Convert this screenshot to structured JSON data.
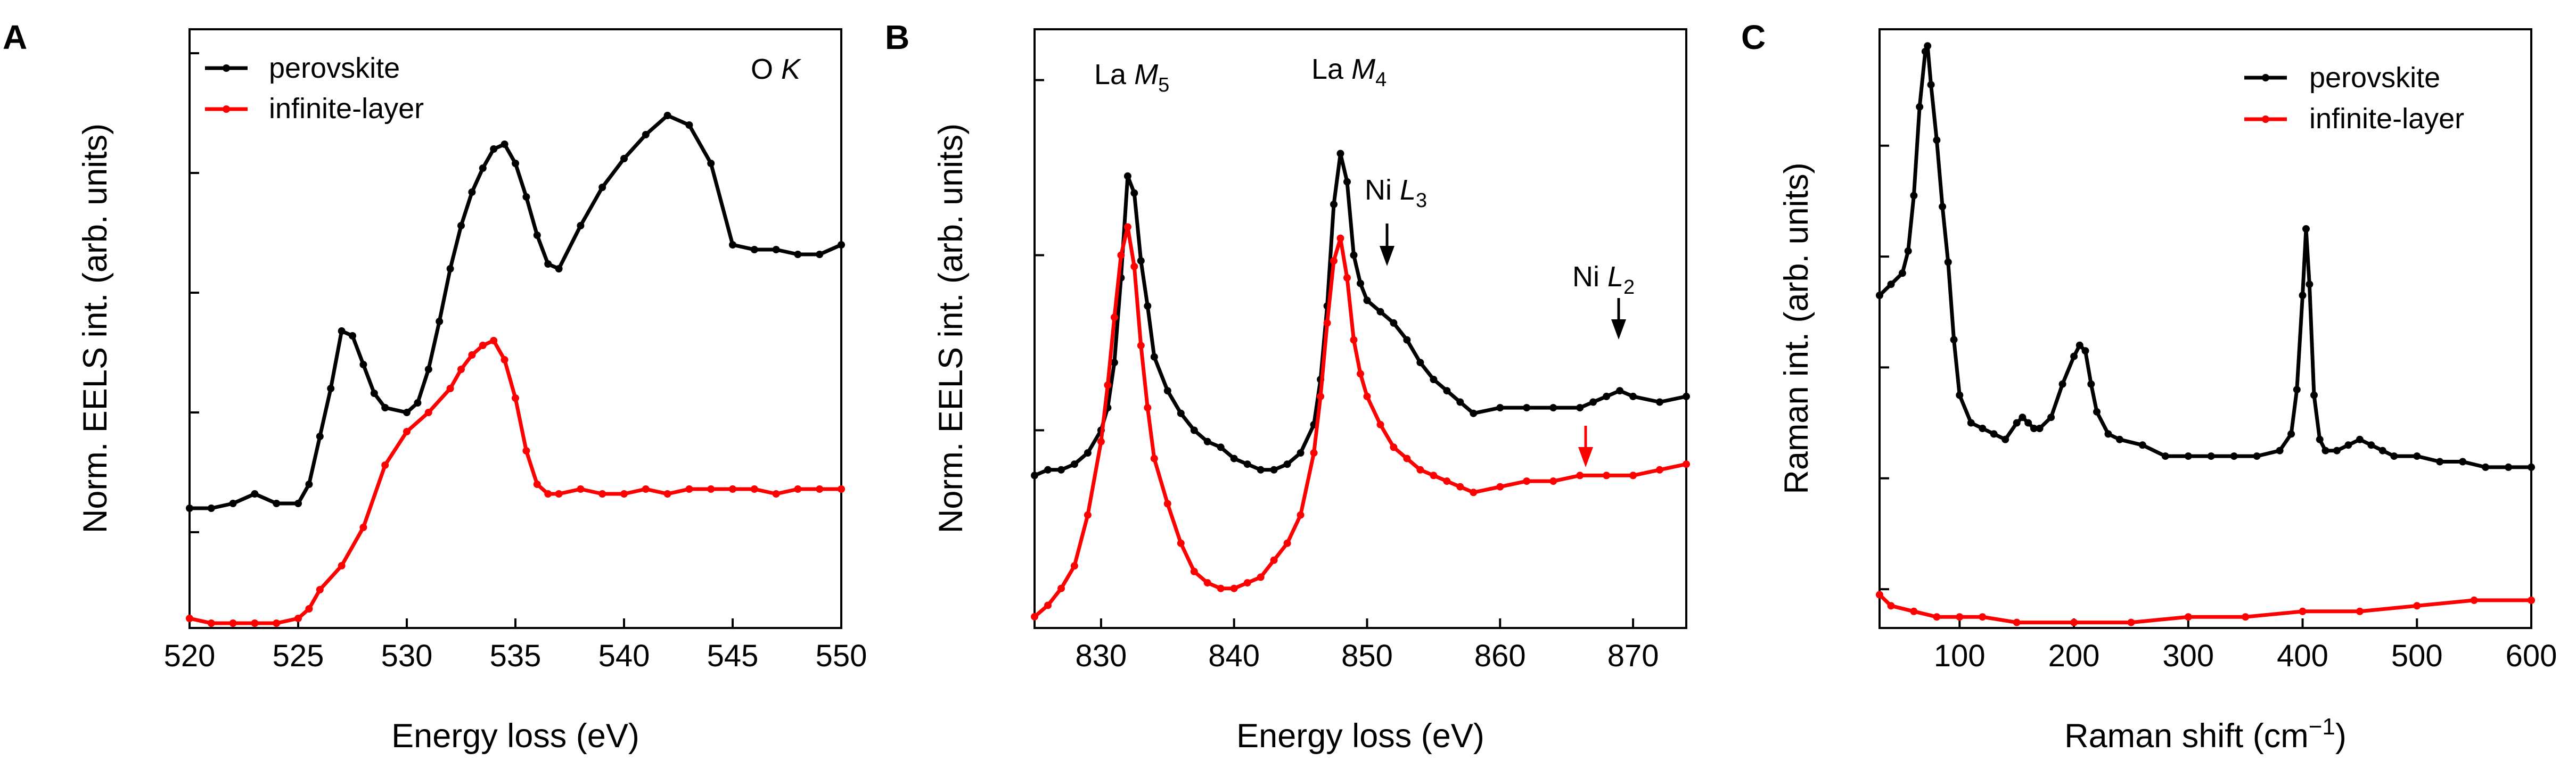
{
  "chart_data": [
    {
      "type": "line",
      "panel_label": "A",
      "xlabel": "Energy loss (eV)",
      "ylabel": "Norm. EELS int. (arb. units)",
      "xlim": [
        520,
        550
      ],
      "ylim": [
        0,
        1.25
      ],
      "x_ticks": [
        520,
        525,
        530,
        535,
        540,
        545,
        550
      ],
      "y_ticks": [
        0.2,
        0.45,
        0.7,
        0.95,
        1.2
      ],
      "edge_label": {
        "text": "O ",
        "italic": "K"
      },
      "legend_position": "top-left",
      "series": [
        {
          "name": "perovskite",
          "color": "#000000",
          "x": [
            520,
            521,
            522,
            523,
            524,
            525,
            525.5,
            526,
            526.5,
            527,
            527.5,
            528,
            528.5,
            529,
            530,
            530.5,
            531,
            531.5,
            532,
            532.5,
            533,
            533.5,
            534,
            534.5,
            535,
            535.5,
            536,
            536.5,
            537,
            538,
            539,
            540,
            541,
            542,
            543,
            544,
            545,
            546,
            547,
            548,
            549,
            550
          ],
          "y": [
            0.25,
            0.25,
            0.26,
            0.28,
            0.26,
            0.26,
            0.3,
            0.4,
            0.5,
            0.62,
            0.61,
            0.55,
            0.49,
            0.46,
            0.45,
            0.47,
            0.54,
            0.64,
            0.75,
            0.84,
            0.91,
            0.96,
            1.0,
            1.01,
            0.97,
            0.9,
            0.82,
            0.76,
            0.75,
            0.84,
            0.92,
            0.98,
            1.03,
            1.07,
            1.05,
            0.97,
            0.8,
            0.79,
            0.79,
            0.78,
            0.78,
            0.8
          ]
        },
        {
          "name": "infinite-layer",
          "color": "#ff0000",
          "x": [
            520,
            521,
            522,
            523,
            524,
            525,
            525.5,
            526,
            527,
            528,
            529,
            530,
            531,
            532,
            532.5,
            533,
            533.5,
            534,
            534.5,
            535,
            535.5,
            536,
            536.5,
            537,
            538,
            539,
            540,
            541,
            542,
            543,
            544,
            545,
            546,
            547,
            548,
            549,
            550
          ],
          "y": [
            0.02,
            0.01,
            0.01,
            0.01,
            0.01,
            0.02,
            0.04,
            0.08,
            0.13,
            0.21,
            0.34,
            0.41,
            0.45,
            0.5,
            0.54,
            0.57,
            0.59,
            0.6,
            0.56,
            0.48,
            0.37,
            0.3,
            0.28,
            0.28,
            0.29,
            0.28,
            0.28,
            0.29,
            0.28,
            0.29,
            0.29,
            0.29,
            0.29,
            0.28,
            0.29,
            0.29,
            0.29
          ]
        }
      ]
    },
    {
      "type": "line",
      "panel_label": "B",
      "xlabel": "Energy loss (eV)",
      "ylabel": "Norm. EELS int. (arb. units)",
      "xlim": [
        825,
        874
      ],
      "ylim": [
        0,
        1.06
      ],
      "x_ticks": [
        830,
        840,
        850,
        860,
        870
      ],
      "y_ticks": [
        0.35,
        0.66,
        0.97
      ],
      "peak_labels": [
        {
          "text": "La ",
          "italic": "M",
          "sub": "5"
        },
        {
          "text": "La ",
          "italic": "M",
          "sub": "4"
        },
        {
          "text": "Ni ",
          "italic": "L",
          "sub": "3"
        },
        {
          "text": "Ni ",
          "italic": "L",
          "sub": "2"
        }
      ],
      "series": [
        {
          "name": "perovskite",
          "color": "#000000",
          "x": [
            825,
            826,
            827,
            828,
            829,
            830,
            830.5,
            831,
            831.5,
            832,
            832.5,
            833,
            833.5,
            834,
            835,
            836,
            837,
            838,
            839,
            840,
            841,
            842,
            843,
            844,
            845,
            846,
            846.5,
            847,
            847.5,
            848,
            848.5,
            849,
            849.5,
            850,
            851,
            852,
            853,
            854,
            855,
            856,
            857,
            858,
            860,
            862,
            864,
            866,
            867,
            868,
            869,
            870,
            872,
            874
          ],
          "y": [
            0.27,
            0.28,
            0.28,
            0.29,
            0.31,
            0.35,
            0.39,
            0.47,
            0.62,
            0.8,
            0.77,
            0.65,
            0.57,
            0.48,
            0.42,
            0.38,
            0.35,
            0.33,
            0.32,
            0.3,
            0.29,
            0.28,
            0.28,
            0.29,
            0.31,
            0.36,
            0.44,
            0.57,
            0.75,
            0.84,
            0.79,
            0.66,
            0.61,
            0.58,
            0.56,
            0.54,
            0.51,
            0.47,
            0.44,
            0.42,
            0.4,
            0.38,
            0.39,
            0.39,
            0.39,
            0.39,
            0.4,
            0.41,
            0.42,
            0.41,
            0.4,
            0.41
          ]
        },
        {
          "name": "infinite-layer",
          "color": "#ff0000",
          "x": [
            825,
            826,
            827,
            828,
            829,
            830,
            830.5,
            831,
            831.5,
            832,
            832.5,
            833,
            833.5,
            834,
            835,
            836,
            837,
            838,
            839,
            840,
            841,
            842,
            843,
            844,
            845,
            846,
            846.5,
            847,
            847.5,
            848,
            848.5,
            849,
            849.5,
            850,
            851,
            852,
            853,
            854,
            855,
            856,
            857,
            858,
            860,
            862,
            864,
            866,
            868,
            870,
            872,
            874
          ],
          "y": [
            0.02,
            0.04,
            0.07,
            0.11,
            0.2,
            0.33,
            0.43,
            0.55,
            0.66,
            0.71,
            0.64,
            0.5,
            0.39,
            0.3,
            0.22,
            0.15,
            0.1,
            0.08,
            0.07,
            0.07,
            0.08,
            0.09,
            0.12,
            0.15,
            0.2,
            0.31,
            0.41,
            0.54,
            0.65,
            0.69,
            0.62,
            0.51,
            0.45,
            0.41,
            0.36,
            0.32,
            0.3,
            0.28,
            0.27,
            0.26,
            0.25,
            0.24,
            0.25,
            0.26,
            0.26,
            0.27,
            0.27,
            0.27,
            0.28,
            0.29
          ]
        }
      ]
    },
    {
      "type": "line",
      "panel_label": "C",
      "xlabel": "Raman shift (cm⁻¹)",
      "ylabel": "Raman int. (arb. units)",
      "xlim": [
        30,
        600
      ],
      "ylim": [
        0,
        1.08
      ],
      "x_ticks": [
        100,
        200,
        300,
        400,
        500,
        600
      ],
      "y_ticks": [
        0.07,
        0.27,
        0.47,
        0.67,
        0.87
      ],
      "legend_position": "top-right",
      "series": [
        {
          "name": "perovskite",
          "color": "#000000",
          "x": [
            30,
            40,
            50,
            55,
            60,
            65,
            70,
            72,
            75,
            80,
            85,
            90,
            95,
            100,
            110,
            120,
            130,
            140,
            150,
            155,
            160,
            165,
            170,
            180,
            190,
            200,
            205,
            210,
            215,
            220,
            230,
            240,
            260,
            280,
            300,
            320,
            340,
            360,
            380,
            390,
            395,
            400,
            403,
            406,
            410,
            415,
            420,
            430,
            440,
            450,
            460,
            470,
            480,
            500,
            520,
            540,
            560,
            580,
            600
          ],
          "y": [
            0.6,
            0.62,
            0.64,
            0.68,
            0.78,
            0.94,
            1.04,
            1.05,
            0.98,
            0.88,
            0.76,
            0.66,
            0.52,
            0.42,
            0.37,
            0.36,
            0.35,
            0.34,
            0.37,
            0.38,
            0.37,
            0.36,
            0.36,
            0.38,
            0.44,
            0.49,
            0.51,
            0.5,
            0.44,
            0.39,
            0.35,
            0.34,
            0.33,
            0.31,
            0.31,
            0.31,
            0.31,
            0.31,
            0.32,
            0.35,
            0.43,
            0.6,
            0.72,
            0.62,
            0.42,
            0.34,
            0.32,
            0.32,
            0.33,
            0.34,
            0.33,
            0.32,
            0.31,
            0.31,
            0.3,
            0.3,
            0.29,
            0.29,
            0.29
          ]
        },
        {
          "name": "infinite-layer",
          "color": "#ff0000",
          "x": [
            30,
            40,
            60,
            80,
            100,
            120,
            150,
            200,
            250,
            300,
            350,
            400,
            450,
            500,
            550,
            600
          ],
          "y": [
            0.06,
            0.04,
            0.03,
            0.02,
            0.02,
            0.02,
            0.01,
            0.01,
            0.01,
            0.02,
            0.02,
            0.03,
            0.03,
            0.04,
            0.05,
            0.05
          ]
        }
      ]
    }
  ],
  "labels": {
    "panel_a": "A",
    "panel_b": "B",
    "panel_c": "C",
    "eels_ylabel": "Norm. EELS int. (arb. units)",
    "eels_xlabel": "Energy loss (eV)",
    "raman_ylabel": "Raman int. (arb. units)",
    "raman_xlabel_main": "Raman shift (cm",
    "raman_xlabel_sup": "−1",
    "raman_xlabel_close": ")",
    "legend_perovskite": "perovskite",
    "legend_infinite": "infinite-layer",
    "ok_text": "O ",
    "ok_italic": "K",
    "la": "La ",
    "ni": "Ni ",
    "m": "M",
    "l": "L",
    "sub5": "5",
    "sub4": "4",
    "sub3": "3",
    "sub2": "2"
  },
  "colors": {
    "perovskite": "#000000",
    "infinite_layer": "#ff0000"
  }
}
